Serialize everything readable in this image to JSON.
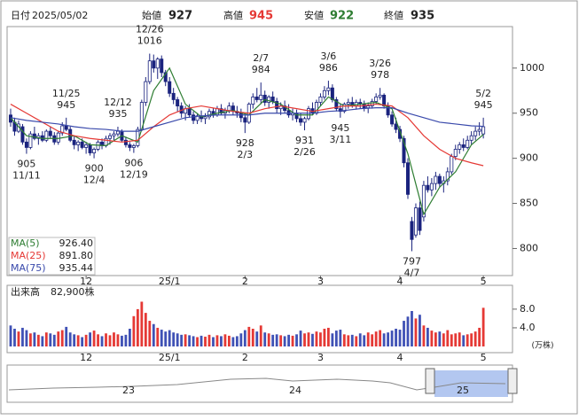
{
  "chart_data": {
    "type": "candlestick",
    "header": {
      "date_label": "日付",
      "date": "2025/05/02",
      "open_label": "始値",
      "open": 927,
      "high_label": "高値",
      "high": 945,
      "low_label": "安値",
      "low": 922,
      "close_label": "終値",
      "close": 935
    },
    "categories": [
      null,
      null,
      null,
      null,
      null,
      null,
      null,
      null,
      null,
      null,
      null,
      null,
      null,
      null,
      null,
      null,
      null,
      null,
      null,
      "12",
      null,
      null,
      null,
      null,
      null,
      null,
      null,
      null,
      null,
      null,
      null,
      null,
      null,
      null,
      null,
      null,
      null,
      null,
      null,
      null,
      "25/1",
      null,
      null,
      null,
      null,
      null,
      null,
      null,
      null,
      null,
      null,
      null,
      null,
      null,
      null,
      null,
      null,
      null,
      null,
      "2",
      null,
      null,
      null,
      null,
      null,
      null,
      null,
      null,
      null,
      null,
      null,
      null,
      null,
      null,
      null,
      null,
      null,
      null,
      "3",
      null,
      null,
      null,
      null,
      null,
      null,
      null,
      null,
      null,
      null,
      null,
      null,
      null,
      null,
      null,
      null,
      null,
      null,
      null,
      "4",
      null,
      null,
      null,
      null,
      null,
      null,
      null,
      null,
      null,
      null,
      null,
      null,
      null,
      null,
      null,
      null,
      null,
      null,
      null,
      null,
      "5",
      null
    ],
    "up_color": "#ffffff",
    "down_color": "#1a237e",
    "edge_color": "#1a237e",
    "candles": [
      [
        948,
        955,
        935,
        940
      ],
      [
        940,
        945,
        925,
        930
      ],
      [
        930,
        942,
        928,
        938
      ],
      [
        935,
        938,
        915,
        918
      ],
      [
        918,
        922,
        905,
        912
      ],
      [
        912,
        930,
        910,
        927
      ],
      [
        927,
        935,
        920,
        922
      ],
      [
        922,
        928,
        915,
        925
      ],
      [
        925,
        930,
        918,
        920
      ],
      [
        920,
        932,
        918,
        930
      ],
      [
        930,
        935,
        922,
        925
      ],
      [
        925,
        929,
        915,
        918
      ],
      [
        918,
        930,
        915,
        928
      ],
      [
        928,
        940,
        925,
        936
      ],
      [
        936,
        945,
        930,
        932
      ],
      [
        932,
        935,
        918,
        920
      ],
      [
        920,
        925,
        910,
        915
      ],
      [
        915,
        920,
        908,
        918
      ],
      [
        918,
        922,
        910,
        912
      ],
      [
        912,
        918,
        905,
        915
      ],
      [
        915,
        917,
        903,
        906
      ],
      [
        906,
        912,
        900,
        910
      ],
      [
        910,
        920,
        908,
        918
      ],
      [
        918,
        922,
        910,
        914
      ],
      [
        914,
        925,
        912,
        922
      ],
      [
        922,
        928,
        915,
        925
      ],
      [
        925,
        930,
        920,
        927
      ],
      [
        927,
        935,
        924,
        930
      ],
      [
        930,
        932,
        918,
        920
      ],
      [
        920,
        924,
        912,
        915
      ],
      [
        915,
        918,
        908,
        912
      ],
      [
        912,
        916,
        906,
        914
      ],
      [
        914,
        935,
        912,
        932
      ],
      [
        932,
        965,
        930,
        962
      ],
      [
        962,
        990,
        958,
        985
      ],
      [
        985,
        1016,
        982,
        1008
      ],
      [
        1008,
        1015,
        995,
        1000
      ],
      [
        1000,
        1012,
        988,
        1010
      ],
      [
        1010,
        1014,
        990,
        995
      ],
      [
        995,
        998,
        980,
        985
      ],
      [
        985,
        990,
        968,
        972
      ],
      [
        972,
        978,
        960,
        965
      ],
      [
        965,
        968,
        952,
        958
      ],
      [
        958,
        962,
        945,
        950
      ],
      [
        950,
        958,
        942,
        955
      ],
      [
        955,
        960,
        945,
        948
      ],
      [
        948,
        952,
        938,
        942
      ],
      [
        942,
        950,
        938,
        947
      ],
      [
        947,
        953,
        940,
        944
      ],
      [
        944,
        950,
        938,
        946
      ],
      [
        946,
        955,
        943,
        952
      ],
      [
        952,
        956,
        945,
        948
      ],
      [
        948,
        958,
        946,
        955
      ],
      [
        955,
        960,
        948,
        950
      ],
      [
        950,
        956,
        944,
        953
      ],
      [
        953,
        962,
        950,
        958
      ],
      [
        958,
        962,
        948,
        952
      ],
      [
        952,
        958,
        945,
        950
      ],
      [
        950,
        955,
        940,
        945
      ],
      [
        945,
        948,
        928,
        940
      ],
      [
        940,
        962,
        938,
        960
      ],
      [
        960,
        972,
        955,
        968
      ],
      [
        968,
        978,
        962,
        965
      ],
      [
        965,
        984,
        960,
        970
      ],
      [
        970,
        975,
        958,
        962
      ],
      [
        962,
        970,
        955,
        968
      ],
      [
        968,
        974,
        960,
        963
      ],
      [
        963,
        967,
        950,
        955
      ],
      [
        955,
        962,
        948,
        958
      ],
      [
        958,
        964,
        950,
        953
      ],
      [
        953,
        960,
        945,
        948
      ],
      [
        948,
        955,
        942,
        950
      ],
      [
        950,
        954,
        940,
        944
      ],
      [
        944,
        950,
        936,
        940
      ],
      [
        940,
        946,
        931,
        944
      ],
      [
        944,
        958,
        942,
        955
      ],
      [
        955,
        962,
        948,
        950
      ],
      [
        950,
        965,
        948,
        962
      ],
      [
        962,
        972,
        958,
        968
      ],
      [
        968,
        980,
        965,
        975
      ],
      [
        975,
        986,
        970,
        978
      ],
      [
        978,
        982,
        962,
        965
      ],
      [
        965,
        968,
        952,
        955
      ],
      [
        955,
        960,
        945,
        952
      ],
      [
        952,
        962,
        950,
        960
      ],
      [
        960,
        966,
        955,
        962
      ],
      [
        962,
        968,
        956,
        958
      ],
      [
        958,
        965,
        954,
        962
      ],
      [
        962,
        966,
        955,
        960
      ],
      [
        960,
        964,
        952,
        956
      ],
      [
        956,
        962,
        950,
        958
      ],
      [
        958,
        966,
        955,
        963
      ],
      [
        963,
        972,
        960,
        968
      ],
      [
        968,
        978,
        965,
        970
      ],
      [
        970,
        972,
        955,
        958
      ],
      [
        958,
        962,
        945,
        948
      ],
      [
        948,
        952,
        935,
        938
      ],
      [
        938,
        945,
        928,
        932
      ],
      [
        932,
        936,
        918,
        922
      ],
      [
        922,
        925,
        890,
        895
      ],
      [
        895,
        900,
        855,
        860
      ],
      [
        830,
        835,
        797,
        810
      ],
      [
        815,
        850,
        812,
        845
      ],
      [
        845,
        852,
        815,
        820
      ],
      [
        835,
        875,
        830,
        870
      ],
      [
        870,
        880,
        862,
        865
      ],
      [
        865,
        878,
        858,
        872
      ],
      [
        872,
        885,
        865,
        880
      ],
      [
        880,
        883,
        868,
        872
      ],
      [
        872,
        880,
        862,
        875
      ],
      [
        875,
        890,
        870,
        885
      ],
      [
        885,
        905,
        882,
        902
      ],
      [
        902,
        915,
        898,
        910
      ],
      [
        910,
        918,
        905,
        915
      ],
      [
        915,
        922,
        908,
        912
      ],
      [
        912,
        925,
        910,
        920
      ],
      [
        920,
        930,
        915,
        925
      ],
      [
        925,
        935,
        920,
        930
      ],
      [
        930,
        940,
        925,
        932
      ],
      [
        927,
        945,
        922,
        935
      ]
    ],
    "ylim": [
      770,
      1046
    ],
    "yticks": [
      800,
      850,
      900,
      950,
      1000
    ],
    "series": [
      {
        "name": "MA(5)",
        "color": "#2e7d32",
        "last": "926.40",
        "x": [
          0,
          4,
          8,
          12,
          16,
          20,
          24,
          28,
          32,
          36,
          40,
          44,
          48,
          52,
          56,
          60,
          64,
          68,
          72,
          76,
          80,
          84,
          88,
          92,
          96,
          100,
          104,
          108,
          112,
          116,
          119
        ],
        "values": [
          945,
          925,
          922,
          922,
          925,
          915,
          914,
          925,
          918,
          975,
          1000,
          960,
          946,
          950,
          953,
          948,
          965,
          960,
          948,
          948,
          968,
          958,
          960,
          962,
          955,
          905,
          838,
          868,
          885,
          915,
          926.4
        ]
      },
      {
        "name": "MA(25)",
        "color": "#e53935",
        "last": "891.80",
        "x": [
          0,
          4,
          8,
          12,
          16,
          20,
          24,
          28,
          32,
          36,
          40,
          44,
          48,
          52,
          56,
          60,
          64,
          68,
          72,
          76,
          80,
          84,
          88,
          92,
          96,
          100,
          104,
          108,
          112,
          116,
          119
        ],
        "values": [
          960,
          950,
          940,
          930,
          925,
          922,
          920,
          918,
          920,
          935,
          948,
          955,
          958,
          955,
          952,
          950,
          955,
          958,
          955,
          952,
          955,
          958,
          958,
          960,
          958,
          945,
          925,
          910,
          900,
          895,
          891.8
        ]
      },
      {
        "name": "MA(75)",
        "color": "#3949ab",
        "last": "935.44",
        "x": [
          0,
          4,
          8,
          12,
          16,
          20,
          24,
          28,
          32,
          36,
          40,
          44,
          48,
          52,
          56,
          60,
          64,
          68,
          72,
          76,
          80,
          84,
          88,
          92,
          96,
          100,
          104,
          108,
          112,
          116,
          119
        ],
        "values": [
          945,
          942,
          940,
          938,
          935,
          933,
          932,
          930,
          930,
          935,
          940,
          945,
          947,
          948,
          948,
          948,
          950,
          950,
          950,
          950,
          952,
          953,
          955,
          956,
          956,
          950,
          945,
          940,
          938,
          936,
          935.44
        ]
      }
    ],
    "annotations_above": [
      {
        "date": "11/25",
        "value": 945
      },
      {
        "date": "12/12",
        "value": 935
      },
      {
        "date": "12/26",
        "value": 1016
      },
      {
        "date": "2/7",
        "value": 984
      },
      {
        "date": "3/6",
        "value": 986
      },
      {
        "date": "3/26",
        "value": 978
      },
      {
        "date": "5/2",
        "value": 945
      }
    ],
    "annotations_below": [
      {
        "date": "11/11",
        "value": 905
      },
      {
        "date": "12/4",
        "value": 900
      },
      {
        "date": "12/19",
        "value": 906
      },
      {
        "date": "2/3",
        "value": 928
      },
      {
        "date": "2/26",
        "value": 931
      },
      {
        "date": "3/11",
        "value": 945
      },
      {
        "date": "4/7",
        "value": 797
      }
    ],
    "volume": {
      "label": "出来高",
      "total": "82,900株",
      "unit": "(万株)",
      "up_color": "#e53935",
      "down_color": "#3f51b5",
      "values": [
        4.5,
        3.8,
        3.2,
        4.0,
        3.5,
        2.8,
        3.0,
        2.5,
        2.2,
        3.0,
        2.8,
        2.5,
        3.2,
        3.5,
        4.2,
        3.0,
        2.6,
        2.4,
        2.0,
        2.5,
        3.0,
        3.4,
        2.6,
        2.2,
        2.8,
        2.4,
        3.0,
        2.6,
        2.3,
        2.5,
        3.8,
        6.5,
        8.0,
        9.6,
        7.2,
        5.5,
        4.8,
        4.0,
        3.6,
        3.2,
        3.5,
        3.0,
        2.8,
        2.5,
        2.6,
        2.4,
        2.2,
        2.0,
        2.3,
        2.1,
        2.5,
        2.0,
        2.4,
        2.2,
        2.6,
        2.3,
        2.0,
        2.2,
        2.8,
        3.5,
        4.2,
        3.8,
        3.2,
        4.5,
        3.0,
        2.8,
        2.5,
        2.6,
        2.4,
        2.2,
        2.5,
        2.3,
        2.6,
        3.4,
        2.8,
        3.0,
        2.7,
        3.2,
        3.0,
        3.8,
        4.0,
        2.8,
        3.4,
        3.6,
        2.6,
        2.4,
        2.5,
        2.2,
        2.8,
        2.4,
        3.0,
        2.6,
        3.2,
        3.5,
        2.8,
        3.0,
        3.4,
        3.8,
        3.6,
        5.5,
        6.4,
        7.6,
        6.0,
        6.8,
        4.5,
        4.0,
        3.4,
        3.0,
        3.2,
        2.8,
        3.5,
        2.6,
        2.8,
        3.0,
        2.4,
        2.6,
        2.8,
        3.2,
        4.0,
        8.29
      ],
      "ylim": [
        0,
        13.3
      ],
      "yticks": [
        {
          "value": 8,
          "label": "8.0"
        },
        {
          "value": 4,
          "label": "4.0"
        }
      ]
    },
    "navigator_labels": [
      "23",
      "24",
      "25"
    ]
  }
}
